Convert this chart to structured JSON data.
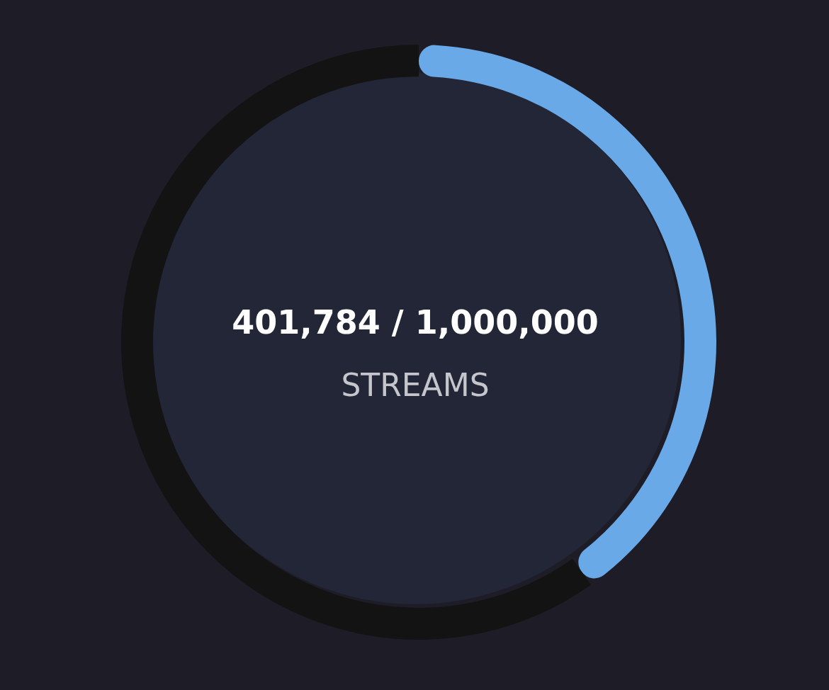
{
  "chart_data": {
    "type": "donut",
    "categories": [
      null,
      null
    ],
    "values": [
      40.18,
      59.82
    ],
    "colors": [
      "#6aa9e8",
      "#131313"
    ],
    "annotations": [
      "401,784 / 1,000,000",
      "STREAMS"
    ]
  }
}
